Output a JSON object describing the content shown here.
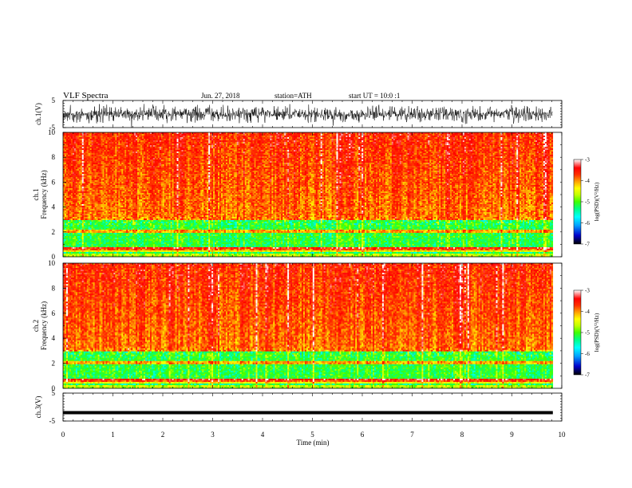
{
  "header": {
    "title": "VLF Spectra",
    "date": "Jun. 27, 2018",
    "station": "station=ATH",
    "start": "start UT =   10:0  :1"
  },
  "chart_data": [
    {
      "type": "line",
      "panel": "ch1-waveform",
      "ylabel": "ch.1(V)",
      "ylim": [
        -5,
        5
      ],
      "y_ticks": [
        "5",
        "-5"
      ],
      "xlim": [
        0,
        10
      ],
      "x_data_end": 9.82,
      "signal_amplitude": "about ±2 V noise"
    },
    {
      "type": "heatmap",
      "panel": "ch1-spectrogram",
      "ylabel": "ch.1\nFrequency (kHz)",
      "ylim": [
        0,
        10
      ],
      "y_ticks": [
        "0",
        "2",
        "4",
        "6",
        "8",
        "10"
      ],
      "xlim": [
        0,
        10
      ],
      "x_data_end": 9.82,
      "colorbar": {
        "label": "log(PSD)(V²/Hz)",
        "range": [
          -7,
          -3
        ],
        "ticks": [
          "-3",
          "-4",
          "-5",
          "-6",
          "-7"
        ]
      }
    },
    {
      "type": "heatmap",
      "panel": "ch2-spectrogram",
      "ylabel": "ch.2\nFrequency (kHz)",
      "ylim": [
        0,
        10
      ],
      "y_ticks": [
        "0",
        "2",
        "4",
        "6",
        "8",
        "10"
      ],
      "xlim": [
        0,
        10
      ],
      "x_data_end": 9.82,
      "colorbar": {
        "label": "log(PSD)(V²/Hz)",
        "range": [
          -7,
          -3
        ],
        "ticks": [
          "-3",
          "-4",
          "-5",
          "-6",
          "-7"
        ]
      }
    },
    {
      "type": "line",
      "panel": "ch3-waveform",
      "ylabel": "ch.3(V)",
      "ylim": [
        -5,
        5
      ],
      "y_ticks": [
        "5",
        "-5"
      ],
      "xlim": [
        0,
        10
      ],
      "x_data_end": 9.82,
      "constant_value": -2
    }
  ],
  "x_axis": {
    "label": "Time (min)",
    "ticks": [
      "0",
      "1",
      "2",
      "3",
      "4",
      "5",
      "6",
      "7",
      "8",
      "9",
      "10"
    ]
  },
  "colors": {
    "colormap": [
      "#000000",
      "#0000cc",
      "#00a0ff",
      "#00ffff",
      "#00ff80",
      "#40ff00",
      "#c0ff00",
      "#ffff00",
      "#ffa000",
      "#ff3000",
      "#ff0000",
      "#ffffff"
    ]
  }
}
